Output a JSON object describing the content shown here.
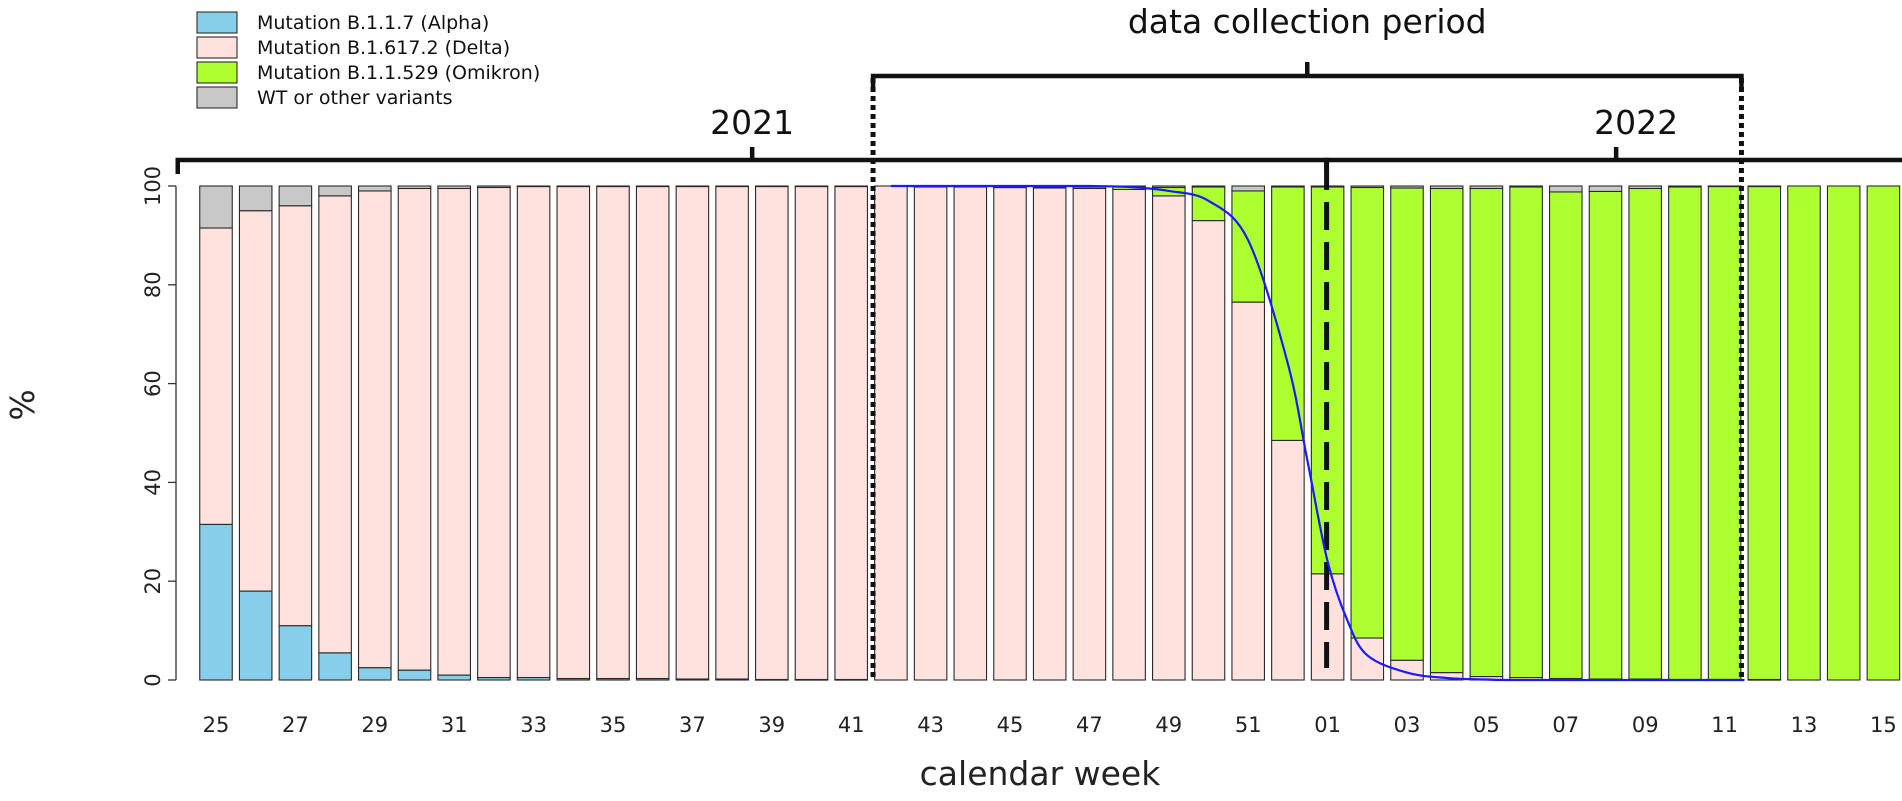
{
  "chart_data": {
    "type": "bar",
    "stacked": true,
    "xlabel": "calendar week",
    "ylabel": "%",
    "ylim": [
      0,
      100
    ],
    "yticks": [
      0,
      20,
      40,
      60,
      80,
      100
    ],
    "grid": false,
    "legend_position": "top-left",
    "categories": [
      "25",
      "26",
      "27",
      "28",
      "29",
      "30",
      "31",
      "32",
      "33",
      "34",
      "35",
      "36",
      "37",
      "38",
      "39",
      "40",
      "41",
      "42",
      "43",
      "44",
      "45",
      "46",
      "47",
      "48",
      "49",
      "50",
      "51",
      "52",
      "01",
      "02",
      "03",
      "04",
      "05",
      "06",
      "07",
      "08",
      "09",
      "10",
      "11",
      "12",
      "13",
      "14",
      "15"
    ],
    "tick_labels": [
      "25",
      "27",
      "29",
      "31",
      "33",
      "35",
      "37",
      "39",
      "41",
      "43",
      "45",
      "47",
      "49",
      "51",
      "01",
      "03",
      "05",
      "07",
      "09",
      "11",
      "13",
      "15"
    ],
    "series": [
      {
        "name": "Mutation B.1.1.7 (Alpha)",
        "color": "#87ceeb",
        "values": [
          31.5,
          18,
          11,
          5.5,
          2.5,
          2,
          1,
          0.5,
          0.5,
          0.3,
          0.3,
          0.3,
          0.2,
          0.2,
          0.1,
          0.1,
          0.1,
          0,
          0,
          0,
          0,
          0,
          0,
          0,
          0,
          0,
          0,
          0,
          0,
          0,
          0,
          0,
          0,
          0,
          0,
          0,
          0,
          0,
          0,
          0,
          0,
          0,
          0
        ]
      },
      {
        "name": "Mutation B.1.617.2 (Delta)",
        "color": "#ffe1de",
        "values": [
          60,
          77,
          85,
          92.5,
          96.5,
          97.5,
          98.5,
          99.2,
          99.4,
          99.6,
          99.6,
          99.6,
          99.7,
          99.7,
          99.8,
          99.8,
          99.8,
          100,
          99.8,
          99.8,
          99.7,
          99.6,
          99.5,
          99.3,
          98,
          93,
          76.5,
          48.5,
          21.5,
          8.5,
          4,
          1.5,
          0.7,
          0.5,
          0.3,
          0.2,
          0.2,
          0.1,
          0.1,
          0.1,
          0,
          0,
          0
        ]
      },
      {
        "name": "Mutation B.1.1.529 (Omikron)",
        "color": "#adff2f",
        "values": [
          0,
          0,
          0,
          0,
          0,
          0,
          0,
          0,
          0,
          0,
          0,
          0,
          0,
          0,
          0,
          0,
          0,
          0,
          0,
          0,
          0.1,
          0.2,
          0.3,
          0.5,
          1.7,
          6.8,
          22.5,
          51.3,
          78.3,
          91.2,
          95.6,
          98,
          98.8,
          99.3,
          98.5,
          98.7,
          99.3,
          99.7,
          99.8,
          99.8,
          100,
          100,
          100
        ]
      },
      {
        "name": "WT or other variants",
        "color": "#c8c8c8",
        "values": [
          8.5,
          5,
          4,
          2,
          1,
          0.5,
          0.5,
          0.3,
          0.1,
          0.1,
          0.1,
          0.1,
          0.1,
          0.1,
          0.1,
          0.1,
          0.1,
          0,
          0.2,
          0.2,
          0.2,
          0.2,
          0.2,
          0.2,
          0.3,
          0.2,
          1,
          0.2,
          0.2,
          0.3,
          0.4,
          0.5,
          0.5,
          0.2,
          1.2,
          1.1,
          0.5,
          0.2,
          0.1,
          0.1,
          0,
          0,
          0
        ]
      }
    ],
    "sigmoid_curve": {
      "color": "#1a1aff",
      "points": [
        [
          17,
          100
        ],
        [
          20,
          100
        ],
        [
          22,
          100
        ],
        [
          23,
          99.8
        ],
        [
          24,
          99
        ],
        [
          25,
          97
        ],
        [
          26,
          89
        ],
        [
          27,
          64
        ],
        [
          27.5,
          44
        ],
        [
          28,
          24
        ],
        [
          28.5,
          12
        ],
        [
          29,
          5
        ],
        [
          30,
          1.5
        ],
        [
          31,
          0.4
        ],
        [
          32,
          0.1
        ],
        [
          33,
          0
        ],
        [
          38.5,
          0
        ]
      ]
    },
    "annotations": {
      "year_2021": "2021",
      "year_2022": "2022",
      "period_label": "data collection period",
      "period_start": "42",
      "period_end": "11",
      "year_boundary": "01"
    }
  }
}
